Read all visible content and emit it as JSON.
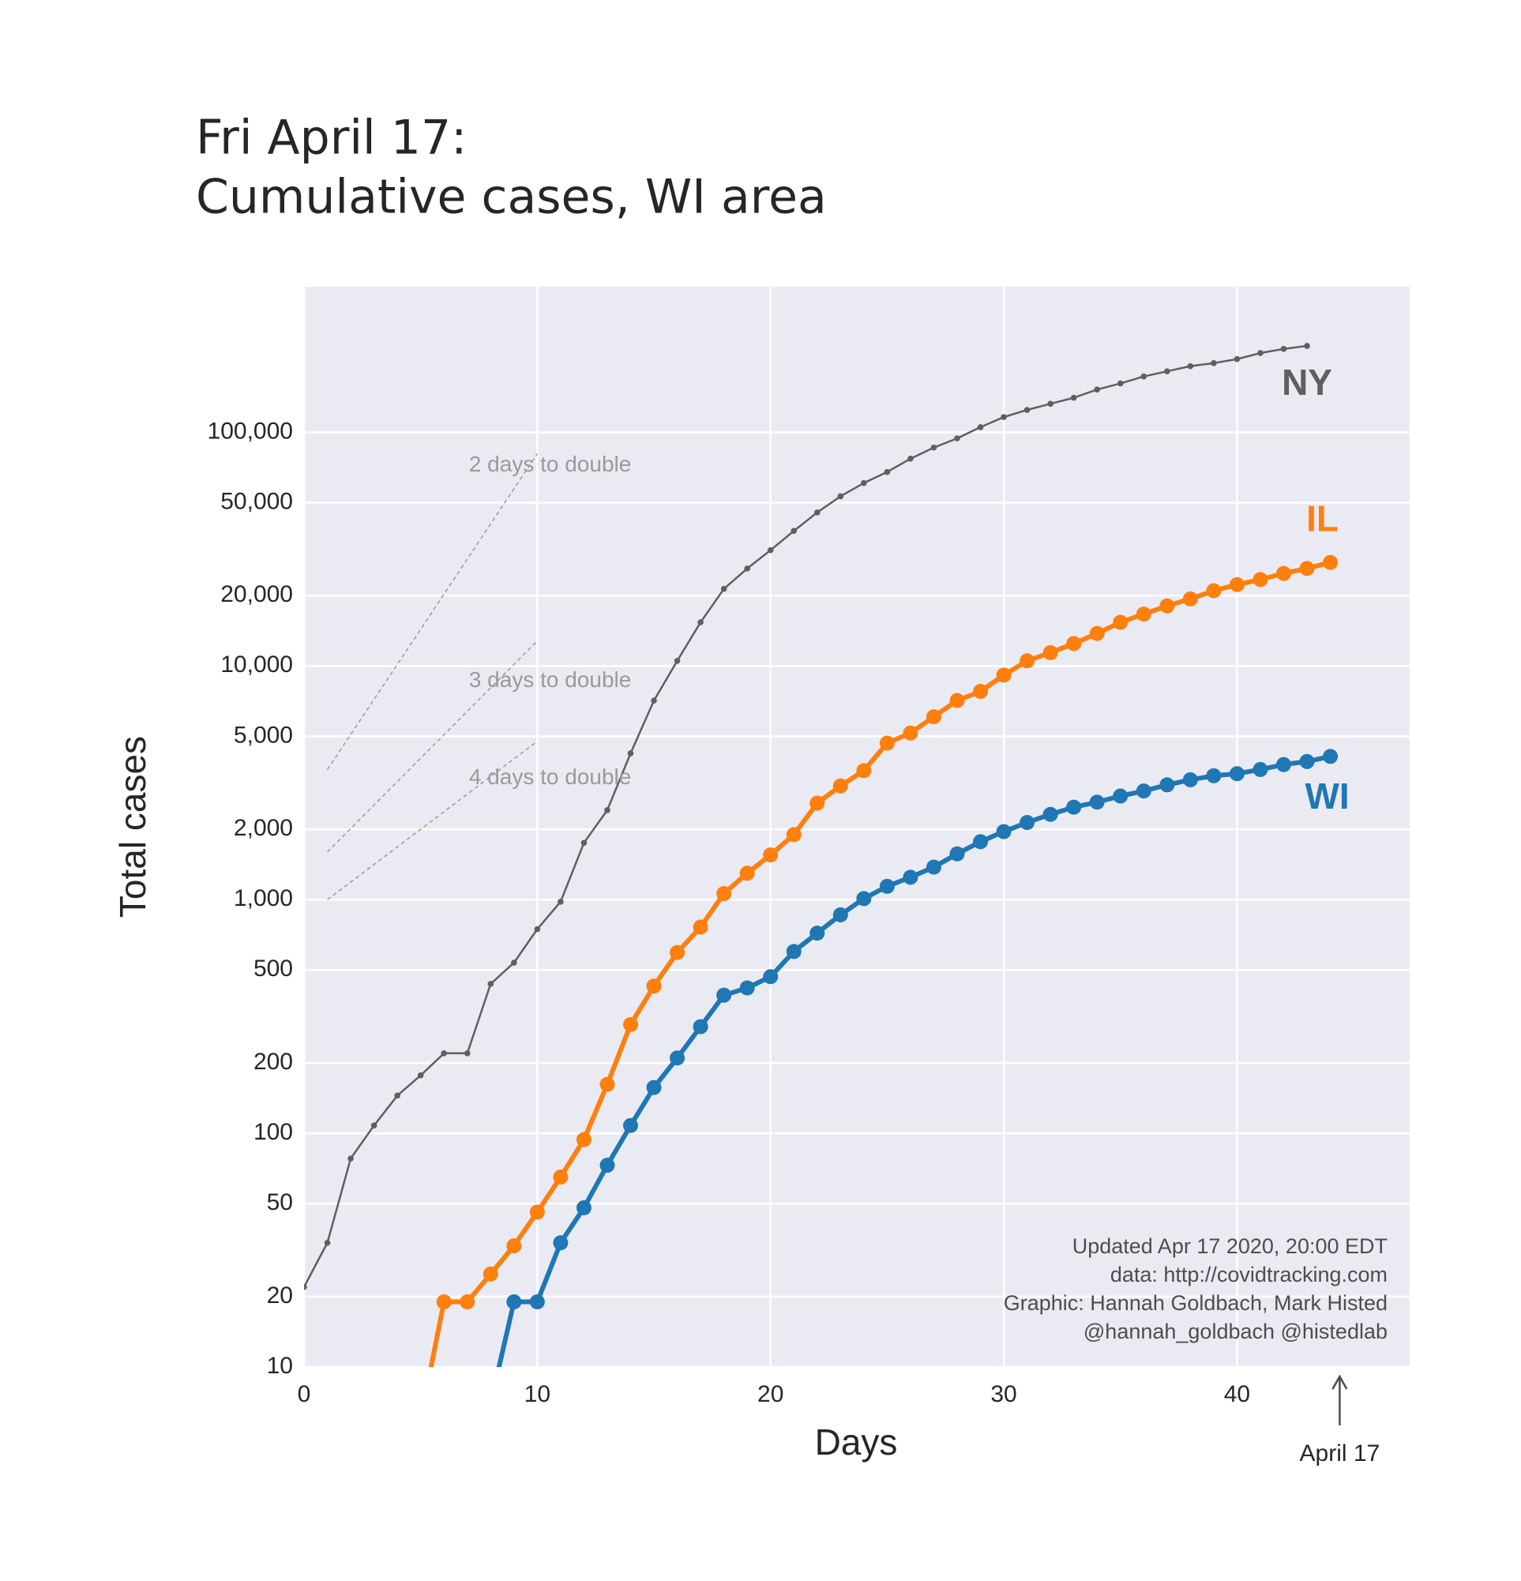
{
  "chart_data": {
    "type": "line",
    "title": [
      "Fri April 17:",
      "Cumulative cases, WI area"
    ],
    "x_label": "Days",
    "y_label": "Total cases",
    "log_y": true,
    "grid": true,
    "xlim": [
      0,
      47.4
    ],
    "xticks": [
      0,
      10,
      20,
      30,
      40
    ],
    "ylim": [
      10,
      420000
    ],
    "yticks": [
      10,
      20,
      50,
      100,
      200,
      500,
      {
        "value": 1000,
        "label": "1,000"
      },
      {
        "value": 2000,
        "label": "2,000"
      },
      {
        "value": 5000,
        "label": "5,000"
      },
      {
        "value": 10000,
        "label": "10,000"
      },
      {
        "value": 20000,
        "label": "20,000"
      },
      {
        "value": 50000,
        "label": "50,000"
      },
      {
        "value": 100000,
        "label": "100,000"
      }
    ],
    "x": [
      0,
      1,
      2,
      3,
      4,
      5,
      6,
      7,
      8,
      9,
      10,
      11,
      12,
      13,
      14,
      15,
      16,
      17,
      18,
      19,
      20,
      21,
      22,
      23,
      24,
      25,
      26,
      27,
      28,
      29,
      30,
      31,
      32,
      33,
      34,
      35,
      36,
      37,
      38,
      39,
      40,
      41,
      42,
      43,
      44
    ],
    "series": [
      {
        "name": "NY",
        "color": "#5f5f5f",
        "values": [
          22,
          34,
          78,
          108,
          145,
          177,
          220,
          220,
          436,
          537,
          748,
          980,
          1750,
          2415,
          4230,
          7110,
          10520,
          15380,
          21380,
          26130,
          31300,
          37850,
          45380,
          53220,
          60660,
          67650,
          77100,
          86040,
          94180,
          105200,
          116200,
          124700,
          132400,
          140600,
          152400,
          161800,
          173400,
          182400,
          191900,
          197700,
          205700,
          218400,
          227400,
          234300,
          null
        ]
      },
      {
        "name": "IL",
        "color": "#ff7f0e",
        "values": [
          null,
          null,
          null,
          null,
          null,
          6,
          19,
          19,
          25,
          33,
          46,
          65,
          94,
          162,
          292,
          427,
          594,
          763,
          1062,
          1297,
          1553,
          1898,
          2587,
          3067,
          3565,
          4674,
          5165,
          6064,
          7115,
          7785,
          9140,
          10520,
          11400,
          12470,
          13780,
          15380,
          16670,
          18070,
          19370,
          20990,
          22290,
          23440,
          24890,
          26140,
          27740
        ]
      },
      {
        "name": "WI",
        "color": "#1f77b4",
        "values": [
          null,
          null,
          null,
          null,
          null,
          null,
          null,
          null,
          7,
          19,
          19,
          34,
          48,
          73,
          108,
          157,
          210,
          286,
          390,
          419,
          468,
          600,
          719,
          861,
          1010,
          1140,
          1247,
          1378,
          1570,
          1770,
          1955,
          2138,
          2317,
          2487,
          2614,
          2775,
          2918,
          3098,
          3258,
          3390,
          3460,
          3605,
          3785,
          3900,
          4100
        ]
      }
    ],
    "guides": [
      {
        "label": "2 days to double",
        "x": [
          1,
          10
        ],
        "values": [
          3600,
          81000
        ]
      },
      {
        "label": "3 days to double",
        "x": [
          1,
          10
        ],
        "values": [
          1600,
          12800
        ]
      },
      {
        "label": "4 days to double",
        "x": [
          1,
          10
        ],
        "values": [
          1000,
          4760
        ]
      }
    ],
    "notes": [
      "Updated Apr 17 2020, 20:00 EDT",
      "data: http://covidtracking.com",
      "Graphic: Hannah Goldbach, Mark Histed",
      "@hannah_goldbach @histedlab"
    ],
    "marker": {
      "text": "April 17",
      "x": 44.4
    }
  }
}
